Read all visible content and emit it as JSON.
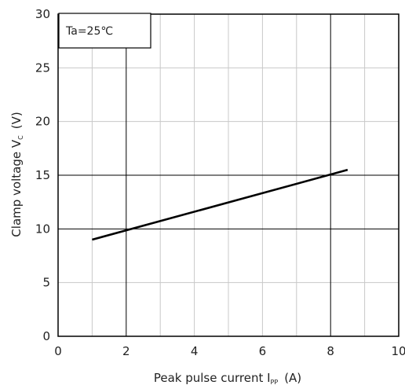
{
  "chart_data": {
    "type": "line",
    "title": "",
    "xlabel": {
      "main": "Peak pulse current I",
      "sub": "PP",
      "unit": "(A)"
    },
    "ylabel": {
      "main": "Clamp voltage  V",
      "sub": "C",
      "unit": "(V)"
    },
    "xlim": [
      0,
      10
    ],
    "ylim": [
      0,
      30
    ],
    "x_ticks": [
      0,
      2,
      4,
      6,
      8,
      10
    ],
    "y_ticks": [
      0,
      5,
      10,
      15,
      20,
      25,
      30
    ],
    "x_tick_labels": [
      "0",
      "2",
      "4",
      "6",
      "8",
      "10"
    ],
    "y_tick_labels": [
      "0",
      "5",
      "10",
      "15",
      "20",
      "25",
      "30"
    ],
    "x_minor_step": 1,
    "y_minor_step": 5,
    "x_major_grid": [
      2,
      8
    ],
    "y_major_grid": [
      10,
      15
    ],
    "grid": true,
    "legend": "none",
    "annotation": "Ta=25℃",
    "series": [
      {
        "x": [
          1,
          8.5
        ],
        "y": [
          9.0,
          15.5
        ],
        "color": "#000000"
      }
    ]
  }
}
